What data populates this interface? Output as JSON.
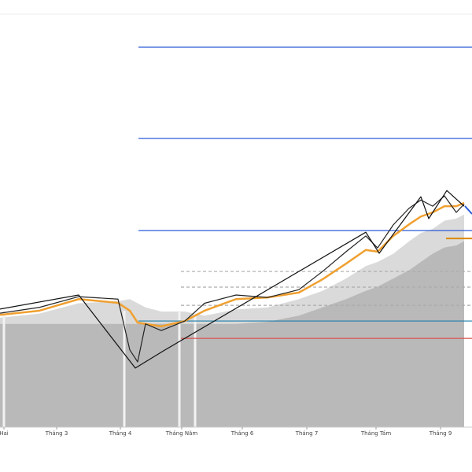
{
  "chart_data": {
    "type": "line",
    "x": [
      0,
      10,
      20,
      30,
      33,
      35,
      37,
      41,
      47,
      52,
      60,
      68,
      76,
      82,
      88,
      93,
      96,
      100,
      104,
      107,
      110,
      113,
      116,
      118
    ],
    "xlim": [
      0,
      120
    ],
    "ylim": [
      0,
      100
    ],
    "xticks": [
      {
        "value": 1,
        "label": "Hai"
      },
      {
        "value": 14.4,
        "label": "Tháng 3"
      },
      {
        "value": 30.6,
        "label": "Tháng 4"
      },
      {
        "value": 46.2,
        "label": "Tháng Năm"
      },
      {
        "value": 61.6,
        "label": "Tháng 6"
      },
      {
        "value": 78,
        "label": "Tháng 7"
      },
      {
        "value": 95.6,
        "label": "Tháng Tám"
      },
      {
        "value": 112,
        "label": "Tháng 9"
      }
    ],
    "areas": [
      {
        "color": "#d4d4d4",
        "values": [
          26.5,
          27.5,
          30,
          30.5,
          31,
          30,
          29,
          28,
          28,
          27,
          28.5,
          29,
          31,
          33,
          36,
          39,
          40,
          42,
          45,
          47,
          48,
          50,
          50.5,
          51.5
        ]
      },
      {
        "color": "#b3b3b3",
        "values": [
          25,
          25,
          25,
          25,
          25,
          25,
          25,
          25,
          25,
          25,
          25,
          25.5,
          27,
          29,
          31,
          33,
          34,
          36,
          38,
          40,
          42,
          43.5,
          44,
          45
        ]
      }
    ],
    "levels": [
      {
        "value": 92,
        "from": 35.2,
        "color": "#2a5bd7",
        "dashed": false
      },
      {
        "value": 69.9,
        "from": 35.2,
        "color": "#2a5bd7",
        "dashed": false
      },
      {
        "value": 47.6,
        "from": 35.2,
        "color": "#2a5bd7",
        "dashed": false
      },
      {
        "value": 25.7,
        "from": 35.2,
        "color": "#1f7fa8",
        "dashed": false
      },
      {
        "value": 21.5,
        "from": 46,
        "color": "#d9534f",
        "dashed": false
      },
      {
        "value": 37.7,
        "from": 46,
        "color": "#aaaaaa",
        "dashed": true
      },
      {
        "value": 33.9,
        "from": 46,
        "color": "#aaaaaa",
        "dashed": true
      },
      {
        "value": 29.5,
        "from": 46,
        "color": "#aaaaaa",
        "dashed": true
      },
      {
        "value": 45.7,
        "from": 113.4,
        "color": "#d98a0b",
        "dashed": false
      }
    ],
    "series": [
      {
        "color": "#f0a030",
        "width": 2.5,
        "values": [
          27.2,
          28.2,
          31,
          30.1,
          28.2,
          25.3,
          25,
          24.4,
          25.7,
          28.2,
          31,
          31.4,
          32.6,
          35.8,
          39.6,
          42.9,
          42.5,
          46.3,
          49.1,
          51,
          52,
          53.5,
          53.5,
          54.3
        ]
      },
      {
        "color": "#222222",
        "width": 1.2,
        "values": [
          27.6,
          29,
          31.6,
          31,
          18.7,
          15.8,
          25,
          23.4,
          25.7,
          30,
          32,
          31.4,
          33.3,
          37.7,
          42.5,
          46.3,
          43.4,
          49,
          53,
          55,
          53.5,
          56,
          52,
          54
        ]
      },
      {
        "color": "#111111",
        "width": 1.2,
        "x": [
          0,
          20,
          34.4,
          41.6,
          93,
          96.4,
          107,
          109,
          113.6,
          118
        ],
        "values": [
          28.6,
          32,
          14.3,
          18.5,
          47.2,
          42.1,
          55.8,
          50.5,
          57.3,
          53.5
        ]
      }
    ]
  }
}
